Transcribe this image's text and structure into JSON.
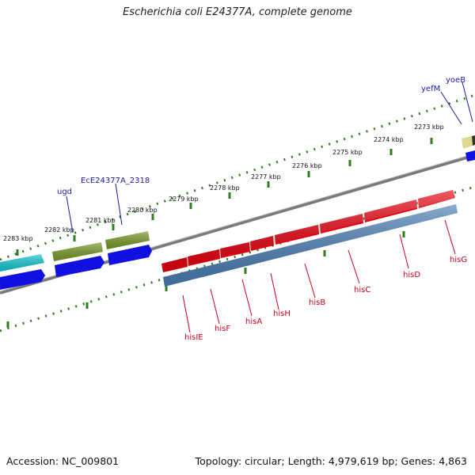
{
  "title": "Escherichia coli E24377A, complete genome",
  "footer": {
    "accession": "Accession: NC_009801",
    "topology": "Topology: circular; Length: 4,979,619 bp; Genes: 4,863"
  },
  "colors": {
    "backbone": "#7a7a7a",
    "tick": "#2e7d1e",
    "blue_label": "#1a1aa8",
    "red_label": "#c8001e",
    "cyan_gene": "#14c8d2",
    "olive_gene": "#7a9a2a",
    "blue_gene": "#1010e0",
    "red_gene": "#e8000e",
    "steel_gene": "#4a7fb5",
    "khaki_gene": "#e0d890",
    "dark_gene": "#333333"
  },
  "kbp_ticks": [
    "2283 kbp",
    "2282 kbp",
    "2281 kbp",
    "2280 kbp",
    "2279 kbp",
    "2278 kbp",
    "2277 kbp",
    "2276 kbp",
    "2275 kbp",
    "2274 kbp",
    "2273 kbp"
  ],
  "genes_top": [
    "ugd",
    "EcE24377A_2318",
    "yefM",
    "yoeB"
  ],
  "genes_bottom": [
    "hisIE",
    "hisF",
    "hisA",
    "hisH",
    "hisB",
    "hisC",
    "hisD",
    "hisG"
  ]
}
